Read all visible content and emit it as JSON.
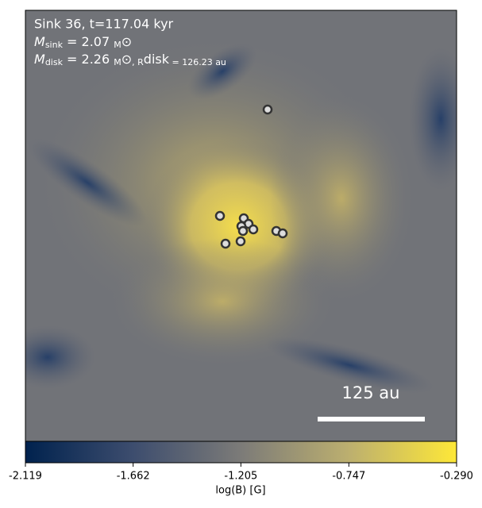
{
  "chart_data": {
    "type": "image",
    "title": "Sink 36, t=117.04 kyr",
    "annotations": [
      [
        "M",
        "sink",
        " = 2.07 ",
        "M",
        "⊙"
      ],
      [
        "M",
        "disk",
        " = 2.26 ",
        "M",
        "⊙",
        ", R",
        "disk",
        " = 126.23 au"
      ]
    ],
    "scale_bar": "125 au",
    "colorbar": {
      "label": "log(B) [G]",
      "clim": [
        -2.119,
        -0.29
      ],
      "ticks": [
        -2.119,
        -1.662,
        -1.205,
        -0.747,
        {
          "value": -0.29,
          "label": "-0.290"
        }
      ]
    }
  }
}
